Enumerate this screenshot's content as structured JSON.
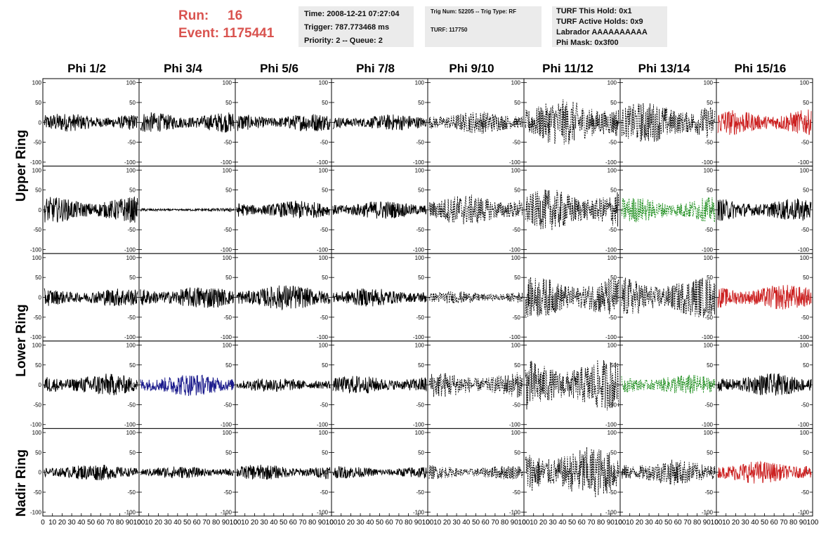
{
  "header": {
    "run_label": "Run:",
    "run_value": "16",
    "event_label": "Event:",
    "event_value": "1175441",
    "time": "Time: 2008-12-21 07:27:04",
    "trigger": "Trigger: 787.773468 ms",
    "priority": "Priority: 2 -- Queue: 2",
    "trig_num": "Trig Num: 52205 -- Trig Type: RF",
    "turf": "TURF: 117750",
    "turf_hold": "TURF This Hold: 0x1",
    "turf_active": "TURF Active Holds: 0x9",
    "labrador": "Labrador AAAAAAAAAA",
    "phi_mask": "Phi Mask: 0x3f00"
  },
  "columns": [
    "Phi 1/2",
    "Phi 3/4",
    "Phi 5/6",
    "Phi 7/8",
    "Phi 9/10",
    "Phi 11/12",
    "Phi 13/14",
    "Phi 15/16"
  ],
  "row_groups": [
    {
      "label": "Upper Ring"
    },
    {
      "label": "Lower Ring"
    },
    {
      "label": "Nadir Ring"
    }
  ],
  "chart_data": {
    "type": "line",
    "ylim": [
      -110,
      110
    ],
    "yticks": [
      -100,
      -50,
      0,
      50,
      100
    ],
    "xlim": [
      0,
      100
    ],
    "xtick_labels": [
      "0",
      "10",
      "20",
      "30",
      "40",
      "50",
      "60",
      "70",
      "80",
      "90",
      "100"
    ],
    "colors": {
      "black": "#000000",
      "red": "#cc2222",
      "blue": "#1a1a8c",
      "green": "#1a8c1a"
    },
    "panels": [
      [
        {
          "color": "black",
          "amp": 18,
          "dashed": false
        },
        {
          "color": "black",
          "amp": 20,
          "dashed": false
        },
        {
          "color": "black",
          "amp": 18,
          "dashed": false
        },
        {
          "color": "black",
          "amp": 16,
          "dashed": false
        },
        {
          "color": "black",
          "amp": 22,
          "dashed": true
        },
        {
          "color": "black",
          "amp": 45,
          "dashed": true
        },
        {
          "color": "black",
          "amp": 40,
          "dashed": true
        },
        {
          "color": "red",
          "amp": 25,
          "dashed": false
        }
      ],
      [
        {
          "color": "black",
          "amp": 25,
          "dashed": false
        },
        {
          "color": "black",
          "amp": 3,
          "dashed": false
        },
        {
          "color": "black",
          "amp": 18,
          "dashed": false
        },
        {
          "color": "black",
          "amp": 18,
          "dashed": false
        },
        {
          "color": "black",
          "amp": 30,
          "dashed": true
        },
        {
          "color": "black",
          "amp": 40,
          "dashed": true
        },
        {
          "color": "green",
          "amp": 25,
          "dashed": true
        },
        {
          "color": "black",
          "amp": 22,
          "dashed": false
        }
      ],
      [
        {
          "color": "black",
          "amp": 18,
          "dashed": false
        },
        {
          "color": "black",
          "amp": 22,
          "dashed": false
        },
        {
          "color": "black",
          "amp": 25,
          "dashed": false
        },
        {
          "color": "black",
          "amp": 18,
          "dashed": false
        },
        {
          "color": "black",
          "amp": 12,
          "dashed": true
        },
        {
          "color": "black",
          "amp": 40,
          "dashed": true
        },
        {
          "color": "black",
          "amp": 40,
          "dashed": true
        },
        {
          "color": "red",
          "amp": 25,
          "dashed": false
        }
      ],
      [
        {
          "color": "black",
          "amp": 22,
          "dashed": false
        },
        {
          "color": "blue",
          "amp": 22,
          "dashed": false
        },
        {
          "color": "black",
          "amp": 14,
          "dashed": false
        },
        {
          "color": "black",
          "amp": 18,
          "dashed": false
        },
        {
          "color": "black",
          "amp": 25,
          "dashed": true
        },
        {
          "color": "black",
          "amp": 50,
          "dashed": true
        },
        {
          "color": "green",
          "amp": 20,
          "dashed": true
        },
        {
          "color": "black",
          "amp": 22,
          "dashed": false
        }
      ],
      [
        {
          "color": "black",
          "amp": 16,
          "dashed": false
        },
        {
          "color": "black",
          "amp": 12,
          "dashed": false
        },
        {
          "color": "black",
          "amp": 15,
          "dashed": false
        },
        {
          "color": "black",
          "amp": 12,
          "dashed": false
        },
        {
          "color": "black",
          "amp": 14,
          "dashed": true
        },
        {
          "color": "black",
          "amp": 50,
          "dashed": true
        },
        {
          "color": "black",
          "amp": 25,
          "dashed": true
        },
        {
          "color": "red",
          "amp": 22,
          "dashed": false
        }
      ]
    ]
  }
}
